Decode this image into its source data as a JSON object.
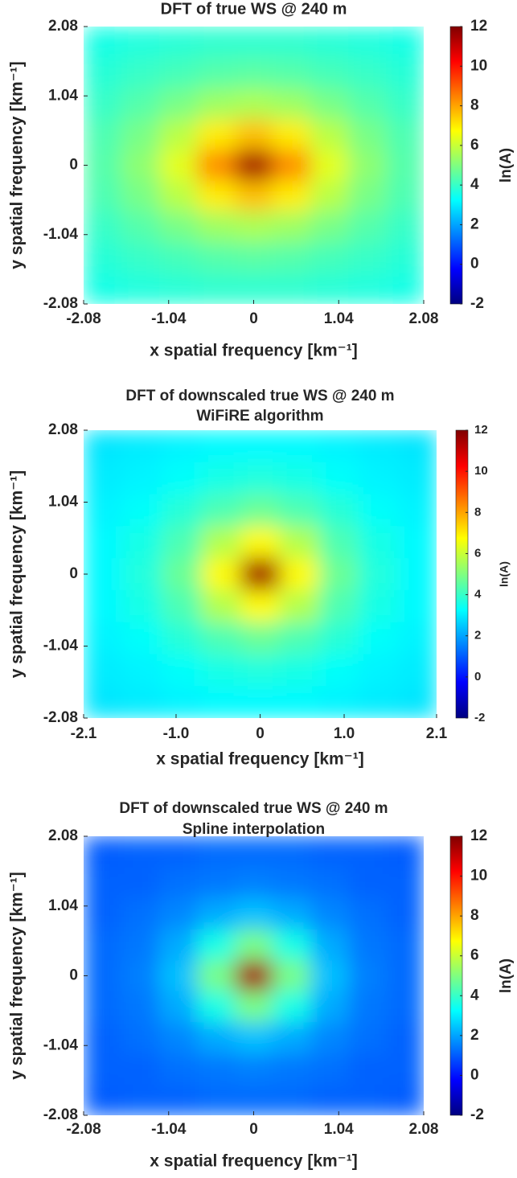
{
  "chart_data": [
    {
      "type": "heatmap",
      "title": "DFT of true WS @ 240 m",
      "xlabel": "x spatial frequency [km⁻¹]",
      "ylabel": "y spatial frequency [km⁻¹]",
      "xlim": [
        -2.08,
        2.08
      ],
      "ylim": [
        -2.08,
        2.08
      ],
      "xticks": [
        -2.08,
        -1.04,
        0,
        1.04,
        2.08
      ],
      "yticks": [
        -2.08,
        -1.04,
        0,
        1.04,
        2.08
      ],
      "z": [
        [
          3.6,
          3.7,
          3.8,
          3.9,
          3.9,
          3.9,
          3.8,
          3.7,
          3.6
        ],
        [
          3.8,
          4.0,
          4.2,
          4.4,
          4.5,
          4.4,
          4.2,
          4.0,
          3.8
        ],
        [
          4.0,
          4.4,
          4.9,
          5.4,
          5.6,
          5.4,
          4.9,
          4.4,
          4.0
        ],
        [
          4.3,
          4.9,
          5.8,
          7.0,
          7.6,
          7.0,
          5.8,
          4.9,
          4.3
        ],
        [
          4.4,
          5.2,
          6.4,
          8.3,
          11.5,
          8.3,
          6.4,
          5.2,
          4.4
        ],
        [
          4.3,
          4.9,
          5.8,
          7.0,
          7.6,
          7.0,
          5.8,
          4.9,
          4.3
        ],
        [
          4.0,
          4.4,
          4.9,
          5.4,
          5.6,
          5.4,
          4.9,
          4.4,
          4.0
        ],
        [
          3.8,
          4.0,
          4.2,
          4.4,
          4.5,
          4.4,
          4.2,
          4.0,
          3.8
        ],
        [
          3.6,
          3.7,
          3.8,
          3.9,
          3.9,
          3.9,
          3.8,
          3.7,
          3.6
        ]
      ],
      "colorbar": {
        "label": "ln(A)",
        "lim": [
          -2,
          12
        ],
        "ticks": [
          -2,
          0,
          2,
          4,
          6,
          8,
          10,
          12
        ],
        "colormap": "jet"
      }
    },
    {
      "type": "heatmap",
      "title": "DFT of downscaled true WS @ 240 m",
      "subtitle": "WiFiRE algorithm",
      "xlabel": "x spatial frequency [km⁻¹]",
      "ylabel": "y spatial frequency [km⁻¹]",
      "xlim": [
        -2.1,
        2.1
      ],
      "ylim": [
        -2.08,
        2.08
      ],
      "xticks": [
        -2.1,
        {
          "value": -1,
          "label": "-1.0"
        },
        0,
        {
          "value": 1,
          "label": "1.0"
        },
        2.1
      ],
      "yticks": [
        -2.08,
        -1.04,
        0,
        1.04,
        2.08
      ],
      "z": [
        [
          2.9,
          3.0,
          3.1,
          3.2,
          3.2,
          3.2,
          3.1,
          3.0,
          2.9
        ],
        [
          3.0,
          3.1,
          3.3,
          3.6,
          3.7,
          3.6,
          3.3,
          3.1,
          3.0
        ],
        [
          3.1,
          3.3,
          3.8,
          4.3,
          4.7,
          4.3,
          3.8,
          3.3,
          3.1
        ],
        [
          3.2,
          3.6,
          4.3,
          5.7,
          6.8,
          5.7,
          4.3,
          3.6,
          3.2
        ],
        [
          3.2,
          3.7,
          4.7,
          6.8,
          11.5,
          6.8,
          4.7,
          3.7,
          3.2
        ],
        [
          3.2,
          3.6,
          4.3,
          5.7,
          6.8,
          5.7,
          4.3,
          3.6,
          3.2
        ],
        [
          3.1,
          3.3,
          3.8,
          4.3,
          4.7,
          4.3,
          3.8,
          3.3,
          3.1
        ],
        [
          3.0,
          3.1,
          3.3,
          3.6,
          3.7,
          3.6,
          3.3,
          3.1,
          3.0
        ],
        [
          2.9,
          3.0,
          3.1,
          3.2,
          3.2,
          3.2,
          3.1,
          3.0,
          2.9
        ]
      ],
      "colorbar": {
        "label": "ln(A)",
        "lim": [
          -2,
          12
        ],
        "ticks": [
          -2,
          0,
          2,
          4,
          6,
          8,
          10,
          12
        ],
        "colormap": "jet"
      }
    },
    {
      "type": "heatmap",
      "title": "DFT of downscaled true WS @ 240 m",
      "subtitle": "Spline interpolation",
      "xlabel": "x spatial frequency [km⁻¹]",
      "ylabel": "y spatial frequency [km⁻¹]",
      "xlim": [
        -2.08,
        2.08
      ],
      "ylim": [
        -2.08,
        2.08
      ],
      "xticks": [
        -2.08,
        -1.04,
        0,
        1.04,
        2.08
      ],
      "yticks": [
        -2.08,
        -1.04,
        0,
        1.04,
        2.08
      ],
      "z": [
        [
          1.0,
          1.1,
          1.1,
          1.2,
          1.2,
          1.2,
          1.1,
          1.1,
          1.0
        ],
        [
          1.1,
          1.1,
          1.3,
          1.4,
          1.5,
          1.4,
          1.3,
          1.1,
          1.1
        ],
        [
          1.1,
          1.3,
          1.6,
          2.1,
          2.4,
          2.1,
          1.6,
          1.3,
          1.1
        ],
        [
          1.2,
          1.4,
          2.1,
          3.6,
          4.9,
          3.6,
          2.1,
          1.4,
          1.2
        ],
        [
          1.2,
          1.5,
          2.4,
          4.9,
          11.5,
          4.9,
          2.4,
          1.5,
          1.2
        ],
        [
          1.2,
          1.4,
          2.1,
          3.6,
          4.9,
          3.6,
          2.1,
          1.4,
          1.2
        ],
        [
          1.1,
          1.3,
          1.6,
          2.1,
          2.4,
          2.1,
          1.6,
          1.3,
          1.1
        ],
        [
          1.1,
          1.1,
          1.3,
          1.4,
          1.5,
          1.4,
          1.3,
          1.1,
          1.1
        ],
        [
          1.0,
          1.1,
          1.1,
          1.2,
          1.2,
          1.2,
          1.1,
          1.1,
          1.0
        ]
      ],
      "colorbar": {
        "label": "ln(A)",
        "lim": [
          -2,
          12
        ],
        "ticks": [
          -2,
          0,
          2,
          4,
          6,
          8,
          10,
          12
        ],
        "colormap": "jet"
      }
    }
  ]
}
